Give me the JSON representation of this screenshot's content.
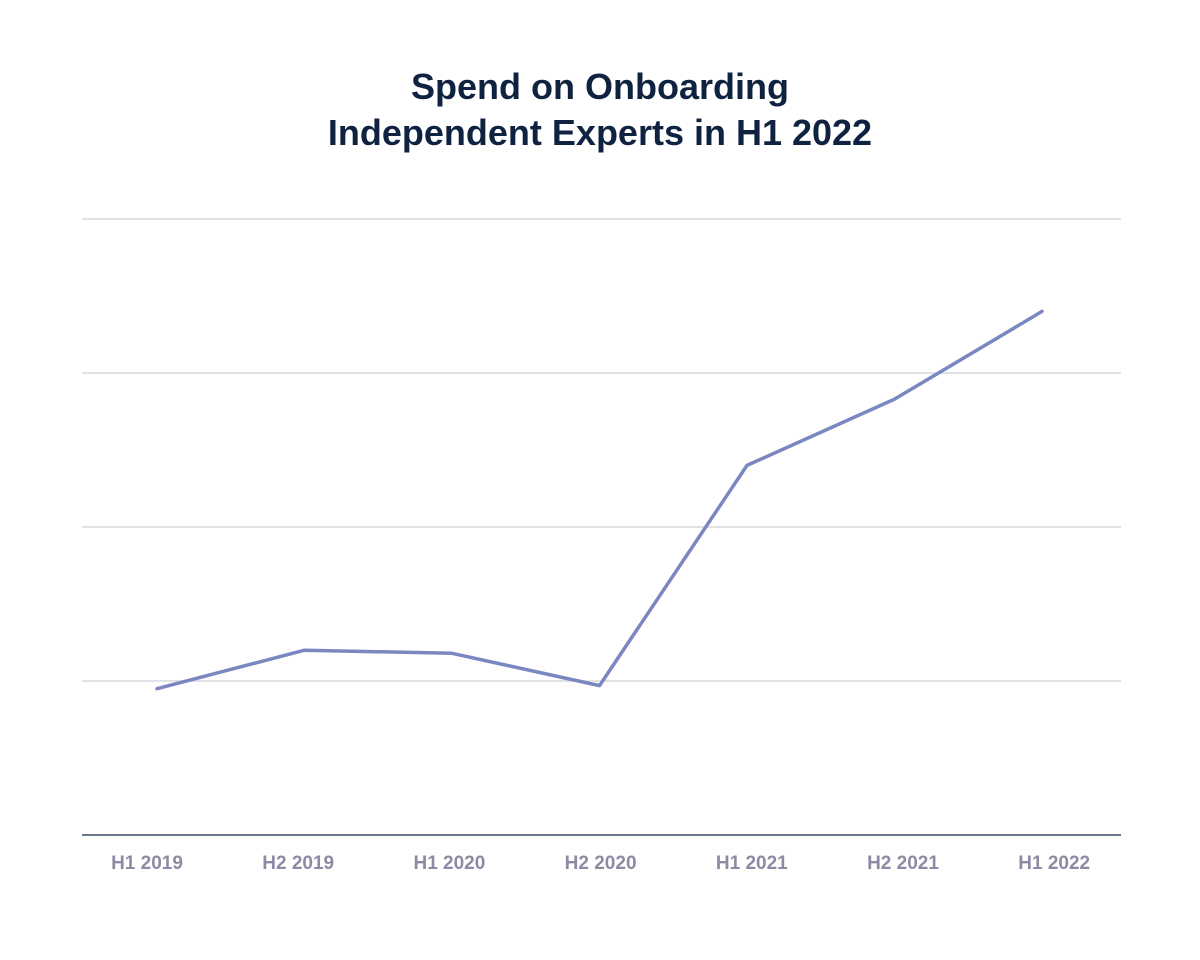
{
  "chart_data": {
    "type": "line",
    "title_lines": [
      "Spend on Onboarding",
      "Independent Experts in H1 2022"
    ],
    "title": "Spend on Onboarding Independent Experts in H1 2022",
    "xlabel": "",
    "ylabel": "",
    "categories": [
      "H1 2019",
      "H2 2019",
      "H1 2020",
      "H2 2020",
      "H1 2021",
      "H2 2021",
      "H1 2022"
    ],
    "series": [
      {
        "values": [
          0.95,
          1.2,
          1.18,
          0.97,
          2.4,
          2.83,
          3.4
        ]
      }
    ],
    "ylim": [
      0,
      4
    ],
    "y_ticks": [
      0,
      1,
      2,
      3,
      4
    ],
    "y_tick_labels_visible": false,
    "grid": "horizontal",
    "legend": "none",
    "colors": {
      "line": "#7b87c0",
      "grid": "#d9d9de",
      "axis": "#3a4a63",
      "tick_label": "#8d8ba3",
      "title": "#0f2340"
    }
  }
}
